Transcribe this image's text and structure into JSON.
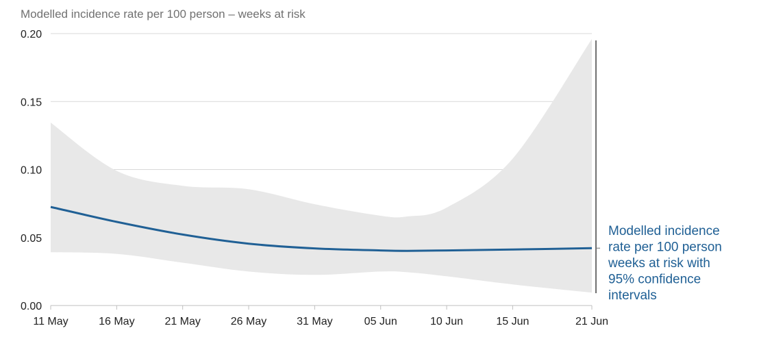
{
  "chart_data": {
    "type": "line",
    "title": "",
    "ylabel": "Modelled incidence rate per 100 person – weeks at risk",
    "xlabel": "",
    "ylim": [
      0,
      0.2
    ],
    "yticks": [
      "0.00",
      "0.05",
      "0.10",
      "0.15",
      "0.20"
    ],
    "xlim": [
      "2021-05-11",
      "2021-06-21"
    ],
    "xticks": [
      {
        "date": "2021-05-11",
        "label": "11 May"
      },
      {
        "date": "2021-05-16",
        "label": "16 May"
      },
      {
        "date": "2021-05-21",
        "label": "21 May"
      },
      {
        "date": "2021-05-26",
        "label": "26 May"
      },
      {
        "date": "2021-05-31",
        "label": "31 May"
      },
      {
        "date": "2021-06-05",
        "label": "05 Jun"
      },
      {
        "date": "2021-06-10",
        "label": "10 Jun"
      },
      {
        "date": "2021-06-15",
        "label": "15 Jun"
      },
      {
        "date": "2021-06-21",
        "label": "21 Jun"
      }
    ],
    "grid": true,
    "series": [
      {
        "name": "Modelled incidence rate per 100 person weeks at risk with 95% confidence intervals",
        "x": [
          "2021-05-11",
          "2021-05-16",
          "2021-05-21",
          "2021-05-26",
          "2021-05-31",
          "2021-06-05",
          "2021-06-07",
          "2021-06-10",
          "2021-06-15",
          "2021-06-21"
        ],
        "y": [
          0.0725,
          0.0615,
          0.0522,
          0.0455,
          0.042,
          0.0405,
          0.0402,
          0.0405,
          0.0412,
          0.0422
        ],
        "lower": [
          0.0392,
          0.038,
          0.0315,
          0.025,
          0.0225,
          0.025,
          0.0245,
          0.0215,
          0.0155,
          0.0095
        ],
        "upper": [
          0.1345,
          0.099,
          0.088,
          0.0855,
          0.0745,
          0.066,
          0.0655,
          0.072,
          0.108,
          0.196
        ]
      }
    ],
    "annotation": {
      "lines": [
        "Modelled incidence",
        "rate per 100 person",
        "weeks at risk with",
        "95% confidence",
        "intervals"
      ]
    },
    "colors": {
      "line": "#206095",
      "band": "#e8e8e8",
      "grid": "#d9d9d9",
      "axis": "#bfbfbf",
      "bracket": "#707070"
    }
  }
}
